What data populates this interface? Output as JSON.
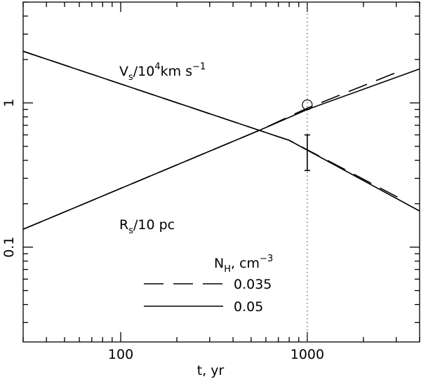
{
  "chart_data": {
    "type": "line",
    "xlabel": "t, yr",
    "xlim": [
      30,
      4000
    ],
    "ylim": [
      0.022,
      5
    ],
    "xticks": [
      100,
      1000
    ],
    "yticks": [
      0.1,
      1
    ],
    "log_x": true,
    "log_y": true,
    "vs_label": [
      "V",
      "s",
      "/10",
      "4",
      "km s",
      "−1"
    ],
    "rs_label": [
      "R",
      "s",
      "/10 pc"
    ],
    "legend_title": [
      "N",
      "H",
      ", cm",
      "−3"
    ],
    "vline": 1000,
    "circle_point": {
      "x": 1000,
      "y": 0.97
    },
    "error_bar": {
      "x": 1000,
      "low": 0.34,
      "high": 0.6
    },
    "series": [
      {
        "name": "0.035",
        "dash": "dashed",
        "Vs": {
          "x": [
            30,
            800,
            3200
          ],
          "values": [
            2.28,
            0.55,
            0.215
          ]
        },
        "Rs": {
          "x": [
            30,
            561,
            1000,
            3200
          ],
          "values": [
            0.133,
            0.65,
            0.92,
            1.68
          ]
        }
      },
      {
        "name": "0.05",
        "dash": "solid",
        "Vs": {
          "x": [
            30,
            800,
            4000
          ],
          "values": [
            2.28,
            0.55,
            0.178
          ]
        },
        "Rs": {
          "x": [
            30,
            561,
            1000,
            4000
          ],
          "values": [
            0.133,
            0.65,
            0.9,
            1.72
          ]
        }
      }
    ]
  }
}
